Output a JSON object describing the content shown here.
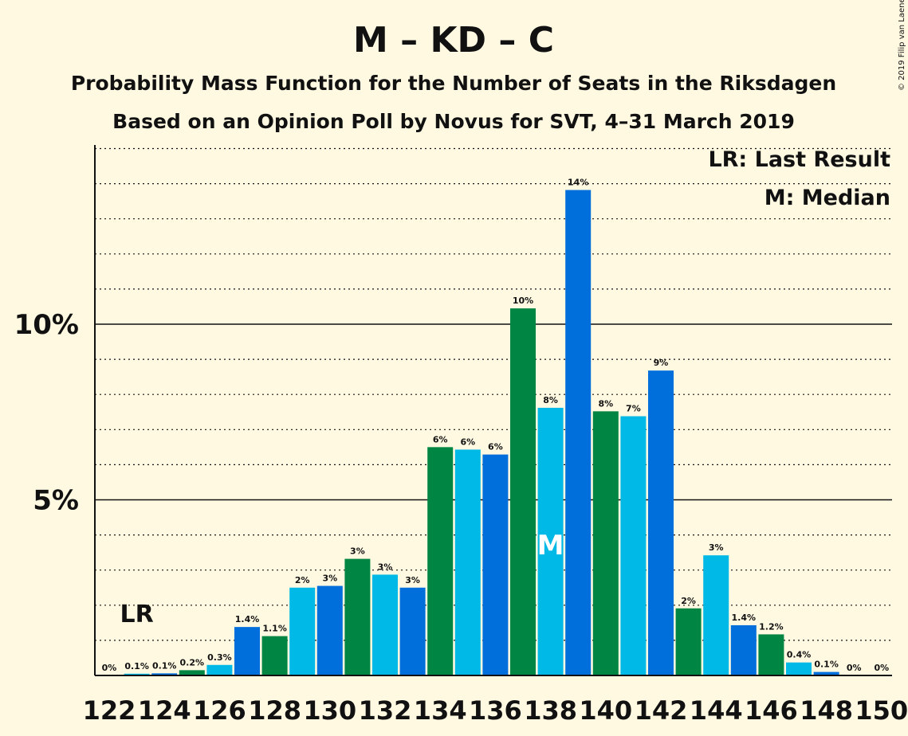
{
  "chart_data": {
    "type": "bar",
    "title": "M – KD – C",
    "subtitle": "Probability Mass Function for the Number of Seats in the Riksdagen",
    "subtitle2": "Based on an Opinion Poll by Novus for SVT, 4–31 March 2019",
    "legend": [
      "LR: Last Result",
      "M: Median"
    ],
    "legend_position": "top-right",
    "copyright": "© 2019 Filip van Laenen",
    "colors": {
      "M": "#006EDB",
      "KD": "#00B9E6",
      "C": "#008542",
      "background": "#FFF9E2"
    },
    "y_ticks": [
      {
        "value": 5,
        "label": "5%"
      },
      {
        "value": 10,
        "label": "10%"
      }
    ],
    "ylim": [
      0,
      15.1
    ],
    "grid": true,
    "last_result_seat": 123,
    "last_result_label": "LR",
    "median_seat": 138,
    "median_label": "M",
    "x_tick_labels": [
      "122",
      "124",
      "126",
      "128",
      "130",
      "132",
      "134",
      "136",
      "138",
      "140",
      "142",
      "144",
      "146",
      "148",
      "150"
    ],
    "bars": [
      {
        "seat": 122,
        "value": 0.0,
        "label": "0%",
        "color": "#006EDB"
      },
      {
        "seat": 123,
        "value": 0.05,
        "label": "0.1%",
        "color": "#00B9E6"
      },
      {
        "seat": 124,
        "value": 0.06,
        "label": "0.1%",
        "color": "#006EDB"
      },
      {
        "seat": 125,
        "value": 0.15,
        "label": "0.2%",
        "color": "#008542"
      },
      {
        "seat": 126,
        "value": 0.3,
        "label": "0.3%",
        "color": "#00B9E6"
      },
      {
        "seat": 127,
        "value": 1.38,
        "label": "1.4%",
        "color": "#006EDB"
      },
      {
        "seat": 128,
        "value": 1.12,
        "label": "1.1%",
        "color": "#008542"
      },
      {
        "seat": 129,
        "value": 2.5,
        "label": "2%",
        "color": "#00B9E6"
      },
      {
        "seat": 130,
        "value": 2.55,
        "label": "3%",
        "color": "#006EDB"
      },
      {
        "seat": 131,
        "value": 3.32,
        "label": "3%",
        "color": "#008542"
      },
      {
        "seat": 132,
        "value": 2.87,
        "label": "3%",
        "color": "#00B9E6"
      },
      {
        "seat": 133,
        "value": 2.5,
        "label": "3%",
        "color": "#006EDB"
      },
      {
        "seat": 134,
        "value": 6.5,
        "label": "6%",
        "color": "#008542"
      },
      {
        "seat": 135,
        "value": 6.43,
        "label": "6%",
        "color": "#00B9E6"
      },
      {
        "seat": 136,
        "value": 6.29,
        "label": "6%",
        "color": "#006EDB"
      },
      {
        "seat": 137,
        "value": 10.45,
        "label": "10%",
        "color": "#008542"
      },
      {
        "seat": 138,
        "value": 7.62,
        "label": "8%",
        "color": "#00B9E6"
      },
      {
        "seat": 139,
        "value": 13.82,
        "label": "14%",
        "color": "#006EDB"
      },
      {
        "seat": 140,
        "value": 7.52,
        "label": "8%",
        "color": "#008542"
      },
      {
        "seat": 141,
        "value": 7.38,
        "label": "7%",
        "color": "#00B9E6"
      },
      {
        "seat": 142,
        "value": 8.68,
        "label": "9%",
        "color": "#006EDB"
      },
      {
        "seat": 143,
        "value": 1.91,
        "label": "2%",
        "color": "#008542"
      },
      {
        "seat": 144,
        "value": 3.42,
        "label": "3%",
        "color": "#00B9E6"
      },
      {
        "seat": 145,
        "value": 1.43,
        "label": "1.4%",
        "color": "#006EDB"
      },
      {
        "seat": 146,
        "value": 1.17,
        "label": "1.2%",
        "color": "#008542"
      },
      {
        "seat": 147,
        "value": 0.37,
        "label": "0.4%",
        "color": "#00B9E6"
      },
      {
        "seat": 148,
        "value": 0.1,
        "label": "0.1%",
        "color": "#006EDB"
      },
      {
        "seat": 149,
        "value": 0.0,
        "label": "0%",
        "color": "#008542"
      },
      {
        "seat": 150,
        "value": 0.0,
        "label": "0%",
        "color": "#00B9E6"
      }
    ]
  }
}
